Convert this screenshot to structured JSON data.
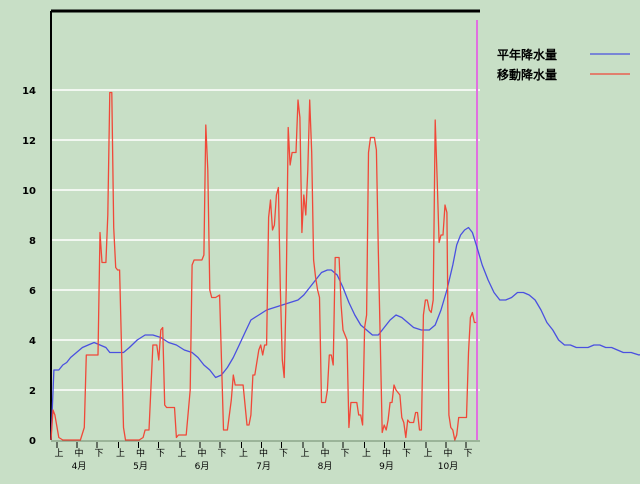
{
  "chart_data": {
    "type": "line",
    "title": "",
    "xlabel": "",
    "ylabel": "",
    "ylim": [
      0,
      16
    ],
    "yticks": [
      0,
      2,
      4,
      6,
      8,
      10,
      12,
      14
    ],
    "grid": true,
    "legend_position": "top-right",
    "x_period_labels": [
      "上",
      "中",
      "下"
    ],
    "x_months": [
      "4月",
      "5月",
      "6月",
      "7月",
      "8月",
      "9月",
      "10月"
    ],
    "colors": {
      "background": "#c8dfc6",
      "grid": "#ffffff",
      "axis": "#000000",
      "marker_line": "#e070e0"
    },
    "series": [
      {
        "name": "平年降水量",
        "color": "#4a50e0",
        "points": [
          [
            0,
            0
          ],
          [
            1.5,
            2.8
          ],
          [
            4,
            2.8
          ],
          [
            6,
            3.0
          ],
          [
            8,
            3.1
          ],
          [
            10,
            3.3
          ],
          [
            13,
            3.5
          ],
          [
            16,
            3.7
          ],
          [
            19,
            3.8
          ],
          [
            22,
            3.9
          ],
          [
            25,
            3.8
          ],
          [
            28,
            3.7
          ],
          [
            30,
            3.5
          ],
          [
            33,
            3.5
          ],
          [
            37,
            3.5
          ],
          [
            40,
            3.7
          ],
          [
            44,
            4.0
          ],
          [
            48,
            4.2
          ],
          [
            52,
            4.2
          ],
          [
            56,
            4.1
          ],
          [
            60,
            3.9
          ],
          [
            64,
            3.8
          ],
          [
            68,
            3.6
          ],
          [
            72,
            3.5
          ],
          [
            75,
            3.3
          ],
          [
            78,
            3.0
          ],
          [
            81,
            2.8
          ],
          [
            84,
            2.5
          ],
          [
            87,
            2.6
          ],
          [
            90,
            2.9
          ],
          [
            93,
            3.3
          ],
          [
            96,
            3.8
          ],
          [
            99,
            4.3
          ],
          [
            102,
            4.8
          ],
          [
            106,
            5.0
          ],
          [
            110,
            5.2
          ],
          [
            114,
            5.3
          ],
          [
            118,
            5.4
          ],
          [
            122,
            5.5
          ],
          [
            126,
            5.6
          ],
          [
            129,
            5.8
          ],
          [
            132,
            6.1
          ],
          [
            135,
            6.4
          ],
          [
            138,
            6.7
          ],
          [
            141,
            6.8
          ],
          [
            143,
            6.8
          ],
          [
            146,
            6.6
          ],
          [
            149,
            6.1
          ],
          [
            152,
            5.5
          ],
          [
            155,
            5.0
          ],
          [
            158,
            4.6
          ],
          [
            161,
            4.4
          ],
          [
            164,
            4.2
          ],
          [
            167,
            4.2
          ],
          [
            170,
            4.5
          ],
          [
            173,
            4.8
          ],
          [
            176,
            5.0
          ],
          [
            179,
            4.9
          ],
          [
            182,
            4.7
          ],
          [
            185,
            4.5
          ],
          [
            189,
            4.4
          ],
          [
            193,
            4.4
          ],
          [
            196,
            4.6
          ],
          [
            199,
            5.2
          ],
          [
            202,
            6.0
          ],
          [
            205,
            7.0
          ],
          [
            207,
            7.8
          ],
          [
            209,
            8.2
          ],
          [
            211,
            8.4
          ],
          [
            213,
            8.5
          ],
          [
            215,
            8.3
          ],
          [
            217,
            7.8
          ],
          [
            220,
            7.0
          ],
          [
            223,
            6.4
          ],
          [
            226,
            5.9
          ],
          [
            229,
            5.6
          ],
          [
            232,
            5.6
          ],
          [
            235,
            5.7
          ],
          [
            238,
            5.9
          ],
          [
            241,
            5.9
          ],
          [
            244,
            5.8
          ],
          [
            247,
            5.6
          ],
          [
            250,
            5.2
          ],
          [
            253,
            4.7
          ],
          [
            256,
            4.4
          ],
          [
            259,
            4.0
          ],
          [
            262,
            3.8
          ],
          [
            265,
            3.8
          ],
          [
            268,
            3.7
          ],
          [
            271,
            3.7
          ],
          [
            274,
            3.7
          ],
          [
            277,
            3.8
          ],
          [
            280,
            3.8
          ],
          [
            283,
            3.7
          ],
          [
            286,
            3.7
          ],
          [
            289,
            3.6
          ],
          [
            292,
            3.5
          ],
          [
            296,
            3.5
          ],
          [
            300,
            3.4
          ],
          [
            304,
            3.5
          ],
          [
            308,
            3.5
          ]
        ]
      },
      {
        "name": "移動降水量",
        "color": "#f04838",
        "points": [
          [
            0,
            0
          ],
          [
            1,
            1.2
          ],
          [
            2,
            1.0
          ],
          [
            4,
            0.1
          ],
          [
            6,
            0
          ],
          [
            10,
            0
          ],
          [
            15,
            0
          ],
          [
            17,
            0.5
          ],
          [
            18,
            3.4
          ],
          [
            20,
            3.4
          ],
          [
            24,
            3.4
          ],
          [
            25,
            8.3
          ],
          [
            26,
            7.1
          ],
          [
            27,
            7.1
          ],
          [
            28,
            7.1
          ],
          [
            29,
            9.0
          ],
          [
            30,
            13.9
          ],
          [
            31,
            13.9
          ],
          [
            32,
            8.5
          ],
          [
            33,
            6.9
          ],
          [
            34,
            6.8
          ],
          [
            35,
            6.8
          ],
          [
            37,
            0.5
          ],
          [
            38,
            0
          ],
          [
            40,
            0
          ],
          [
            42,
            0
          ],
          [
            45,
            0
          ],
          [
            47,
            0.1
          ],
          [
            48,
            0.4
          ],
          [
            50,
            0.4
          ],
          [
            52,
            3.8
          ],
          [
            54,
            3.8
          ],
          [
            55,
            3.2
          ],
          [
            56,
            4.4
          ],
          [
            57,
            4.5
          ],
          [
            58,
            1.4
          ],
          [
            59,
            1.3
          ],
          [
            61,
            1.3
          ],
          [
            63,
            1.3
          ],
          [
            64,
            0.1
          ],
          [
            65,
            0.2
          ],
          [
            67,
            0.2
          ],
          [
            69,
            0.2
          ],
          [
            71,
            2.0
          ],
          [
            72,
            7.0
          ],
          [
            73,
            7.2
          ],
          [
            75,
            7.2
          ],
          [
            77,
            7.2
          ],
          [
            78,
            7.4
          ],
          [
            79,
            12.6
          ],
          [
            80,
            10.8
          ],
          [
            81,
            6.0
          ],
          [
            82,
            5.7
          ],
          [
            84,
            5.7
          ],
          [
            86,
            5.8
          ],
          [
            88,
            0.4
          ],
          [
            90,
            0.4
          ],
          [
            92,
            1.6
          ],
          [
            93,
            2.6
          ],
          [
            94,
            2.2
          ],
          [
            96,
            2.2
          ],
          [
            98,
            2.2
          ],
          [
            100,
            0.6
          ],
          [
            101,
            0.6
          ],
          [
            102,
            1.0
          ],
          [
            103,
            2.6
          ],
          [
            104,
            2.6
          ],
          [
            106,
            3.6
          ],
          [
            107,
            3.8
          ],
          [
            108,
            3.4
          ],
          [
            109,
            3.8
          ],
          [
            110,
            3.8
          ],
          [
            111,
            8.9
          ],
          [
            112,
            9.6
          ],
          [
            113,
            8.4
          ],
          [
            114,
            8.6
          ],
          [
            115,
            9.8
          ],
          [
            116,
            10.1
          ],
          [
            117,
            6.1
          ],
          [
            118,
            3.2
          ],
          [
            119,
            2.5
          ],
          [
            120,
            6.0
          ],
          [
            121,
            12.5
          ],
          [
            122,
            11.0
          ],
          [
            123,
            11.5
          ],
          [
            125,
            11.5
          ],
          [
            126,
            13.6
          ],
          [
            127,
            12.9
          ],
          [
            128,
            8.3
          ],
          [
            129,
            9.8
          ],
          [
            130,
            9.0
          ],
          [
            131,
            10.8
          ],
          [
            132,
            13.6
          ],
          [
            133,
            11.5
          ],
          [
            134,
            7.2
          ],
          [
            135,
            6.5
          ],
          [
            136,
            6.0
          ],
          [
            137,
            5.7
          ],
          [
            138,
            1.5
          ],
          [
            140,
            1.5
          ],
          [
            141,
            2.0
          ],
          [
            142,
            3.4
          ],
          [
            143,
            3.4
          ],
          [
            144,
            3.0
          ],
          [
            145,
            7.3
          ],
          [
            147,
            7.3
          ],
          [
            148,
            5.4
          ],
          [
            149,
            4.4
          ],
          [
            150,
            4.2
          ],
          [
            151,
            4.0
          ],
          [
            152,
            0.5
          ],
          [
            153,
            1.5
          ],
          [
            156,
            1.5
          ],
          [
            157,
            1.0
          ],
          [
            158,
            1.0
          ],
          [
            159,
            0.6
          ],
          [
            160,
            4.5
          ],
          [
            161,
            5.0
          ],
          [
            162,
            11.5
          ],
          [
            163,
            12.1
          ],
          [
            165,
            12.1
          ],
          [
            166,
            11.6
          ],
          [
            167,
            7.6
          ],
          [
            168,
            3.9
          ],
          [
            169,
            0.3
          ],
          [
            170,
            0.6
          ],
          [
            171,
            0.4
          ],
          [
            172,
            0.8
          ],
          [
            173,
            1.5
          ],
          [
            174,
            1.5
          ],
          [
            175,
            2.2
          ],
          [
            176,
            2.0
          ],
          [
            178,
            1.8
          ],
          [
            179,
            0.9
          ],
          [
            180,
            0.7
          ],
          [
            181,
            0.1
          ],
          [
            182,
            0.8
          ],
          [
            183,
            0.7
          ],
          [
            185,
            0.7
          ],
          [
            186,
            1.1
          ],
          [
            187,
            1.1
          ],
          [
            188,
            0.4
          ],
          [
            189,
            0.4
          ],
          [
            190,
            5.0
          ],
          [
            191,
            5.6
          ],
          [
            192,
            5.6
          ],
          [
            193,
            5.2
          ],
          [
            194,
            5.1
          ],
          [
            195,
            5.6
          ],
          [
            196,
            12.8
          ],
          [
            197,
            10.5
          ],
          [
            198,
            7.9
          ],
          [
            199,
            8.2
          ],
          [
            200,
            8.2
          ],
          [
            201,
            9.4
          ],
          [
            202,
            9.1
          ],
          [
            203,
            1.0
          ],
          [
            204,
            0.5
          ],
          [
            205,
            0.4
          ],
          [
            206,
            0
          ],
          [
            207,
            0.2
          ],
          [
            208,
            0.9
          ],
          [
            210,
            0.9
          ],
          [
            212,
            0.9
          ],
          [
            213,
            3.5
          ],
          [
            214,
            4.9
          ],
          [
            215,
            5.1
          ],
          [
            216,
            4.7
          ],
          [
            217,
            4.7
          ]
        ]
      }
    ]
  }
}
